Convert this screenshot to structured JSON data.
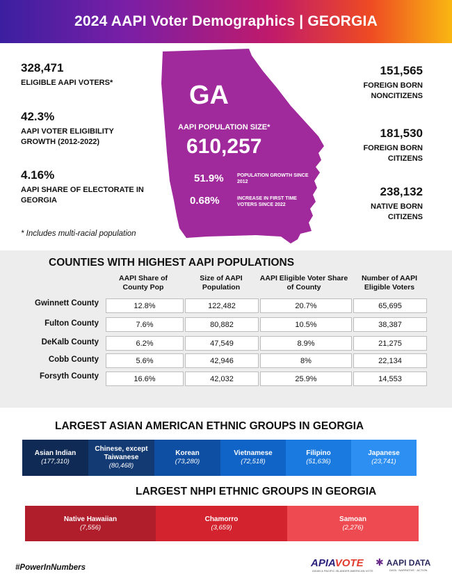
{
  "header": {
    "title": "2024 AAPI Voter Demographics | GEORGIA"
  },
  "left_stats": [
    {
      "value": "328,471",
      "label": "ELIGIBLE AAPI VOTERS*"
    },
    {
      "value": "42.3%",
      "label": "AAPI VOTER ELIGIBILITY GROWTH (2012-2022)"
    },
    {
      "value": "4.16%",
      "label": "AAPI SHARE OF ELECTORATE IN GEORGIA"
    }
  ],
  "right_stats": [
    {
      "value": "151,565",
      "label": "FOREIGN BORN NONCITIZENS"
    },
    {
      "value": "181,530",
      "label": "FOREIGN BORN CITIZENS"
    },
    {
      "value": "238,132",
      "label": "NATIVE BORN CITIZENS"
    }
  ],
  "footnote": "* Includes multi-racial population",
  "map": {
    "state": "GA",
    "pop_label": "AAPI POPULATION SIZE*",
    "pop_value": "610,257",
    "growth_value": "51.9%",
    "growth_label": "POPULATION GROWTH SINCE 2012",
    "firsttime_value": "0.68%",
    "firsttime_label": "INCREASE IN FIRST TIME VOTERS SINCE 2022",
    "fill_color": "#a02a9c"
  },
  "counties_table": {
    "title": "COUNTIES WITH HIGHEST AAPI POPULATIONS",
    "headers": [
      "AAPI Share of County Pop",
      "Size of AAPI Population",
      "AAPI Eligible Voter Share of County",
      "Number of AAPI Eligible Voters"
    ],
    "rows": [
      {
        "county": "Gwinnett County",
        "cells": [
          "12.8%",
          "122,482",
          "20.7%",
          "65,695"
        ]
      },
      {
        "county": "Fulton County",
        "cells": [
          "7.6%",
          "80,882",
          "10.5%",
          "38,387"
        ]
      },
      {
        "county": "DeKalb County",
        "cells": [
          "6.2%",
          "47,549",
          "8.9%",
          "21,275"
        ]
      },
      {
        "county": "Cobb County",
        "cells": [
          "5.6%",
          "42,946",
          "8%",
          "22,134"
        ]
      },
      {
        "county": "Forsyth County",
        "cells": [
          "16.6%",
          "42,032",
          "25.9%",
          "14,553"
        ]
      }
    ]
  },
  "asian_groups": {
    "title": "LARGEST ASIAN AMERICAN ETHNIC GROUPS IN GEORGIA",
    "items": [
      {
        "name": "Asian Indian",
        "value": "(177,310)",
        "color": "#0f2a55"
      },
      {
        "name": "Chinese, except Taiwanese",
        "value": "(80,468)",
        "color": "#133a73"
      },
      {
        "name": "Korean",
        "value": "(73,280)",
        "color": "#0f4fa3"
      },
      {
        "name": "Vietnamese",
        "value": "(72,518)",
        "color": "#1164c7"
      },
      {
        "name": "Filipino",
        "value": "(51,636)",
        "color": "#1a7ae0"
      },
      {
        "name": "Japanese",
        "value": "(23,741)",
        "color": "#2d8ff2"
      }
    ]
  },
  "nhpi_groups": {
    "title": "LARGEST NHPI ETHNIC GROUPS IN GEORGIA",
    "items": [
      {
        "name": "Native Hawaiian",
        "value": "(7,556)",
        "color": "#b01e2c"
      },
      {
        "name": "Chamorro",
        "value": "(3,659)",
        "color": "#d2232e"
      },
      {
        "name": "Samoan",
        "value": "(2,276)",
        "color": "#ee4a52"
      }
    ]
  },
  "footer": {
    "hashtag": "#PowerInNumbers",
    "logo_apia_a": "APIA",
    "logo_apia_b": "VOTE",
    "logo_apia_tagline": "ASIAN & PACIFIC ISLANDER AMERICAN VOTE",
    "logo_aapi_mark": "✱",
    "logo_aapi": "AAPI DATA",
    "logo_aapi_tagline": "DATA · NARRATIVE · ACTION"
  }
}
